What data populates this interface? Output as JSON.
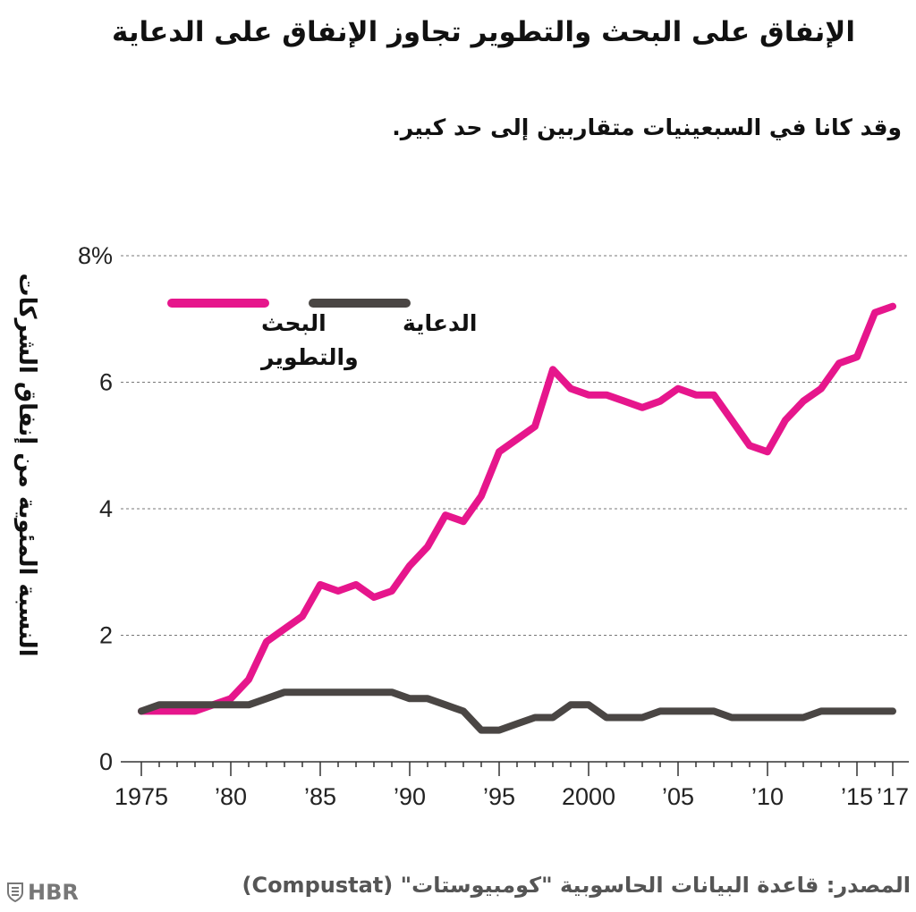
{
  "title": "الإنفاق على البحث والتطوير تجاوز الإنفاق على الدعاية",
  "subtitle": "وقد كانا في السبعينيات متقاربين إلى حد كبير.",
  "source": "المصدر: قاعدة البيانات الحاسوبية \"كومبيوستات\" (Compustat)",
  "logo": {
    "text": "HBR",
    "icon": "shield-icon"
  },
  "chart_data": {
    "type": "line",
    "title": "الإنفاق على البحث والتطوير تجاوز الإنفاق على الدعاية",
    "subtitle": "وقد كانا في السبعينيات متقاربين إلى حد كبير.",
    "ylabel": "النسبة المئوية من إنفاق الشركات",
    "xlabel": "",
    "ylim": [
      0,
      8
    ],
    "xlim": [
      1975,
      2017
    ],
    "grid": "horizontal-dashed",
    "legend_position": "top-left",
    "y_ticks": [
      {
        "value": 0,
        "label": "0"
      },
      {
        "value": 2,
        "label": "2"
      },
      {
        "value": 4,
        "label": "4"
      },
      {
        "value": 6,
        "label": "6"
      },
      {
        "value": 8,
        "label": "8%"
      }
    ],
    "x_ticks": [
      {
        "value": 1975,
        "label": "1975"
      },
      {
        "value": 1980,
        "label": "’80"
      },
      {
        "value": 1985,
        "label": "’85"
      },
      {
        "value": 1990,
        "label": "’90"
      },
      {
        "value": 1995,
        "label": "’95"
      },
      {
        "value": 2000,
        "label": "2000"
      },
      {
        "value": 2005,
        "label": "’05"
      },
      {
        "value": 2010,
        "label": "’10"
      },
      {
        "value": 2015,
        "label": "’15"
      },
      {
        "value": 2017,
        "label": "’17"
      }
    ],
    "x": [
      1975,
      1976,
      1977,
      1978,
      1979,
      1980,
      1981,
      1982,
      1983,
      1984,
      1985,
      1986,
      1987,
      1988,
      1989,
      1990,
      1991,
      1992,
      1993,
      1994,
      1995,
      1996,
      1997,
      1998,
      1999,
      2000,
      2001,
      2002,
      2003,
      2004,
      2005,
      2006,
      2007,
      2008,
      2009,
      2010,
      2011,
      2012,
      2013,
      2014,
      2015,
      2016,
      2017
    ],
    "series": [
      {
        "name": "البحث والتطوير",
        "label_lines": [
          "البحث",
          "والتطوير"
        ],
        "color": "#e6168c",
        "values": [
          0.8,
          0.8,
          0.8,
          0.8,
          0.9,
          1.0,
          1.3,
          1.9,
          2.1,
          2.3,
          2.8,
          2.7,
          2.8,
          2.6,
          2.7,
          3.1,
          3.4,
          3.9,
          3.8,
          4.2,
          4.9,
          5.1,
          5.3,
          6.2,
          5.9,
          5.8,
          5.8,
          5.7,
          5.6,
          5.7,
          5.9,
          5.8,
          5.8,
          5.4,
          5.0,
          4.9,
          5.4,
          5.7,
          5.9,
          6.3,
          6.4,
          7.1,
          7.2
        ]
      },
      {
        "name": "الدعاية",
        "label_lines": [
          "الدعاية"
        ],
        "color": "#4a4644",
        "values": [
          0.8,
          0.9,
          0.9,
          0.9,
          0.9,
          0.9,
          0.9,
          1.0,
          1.1,
          1.1,
          1.1,
          1.1,
          1.1,
          1.1,
          1.1,
          1.0,
          1.0,
          0.9,
          0.8,
          0.5,
          0.5,
          0.6,
          0.7,
          0.7,
          0.9,
          0.9,
          0.7,
          0.7,
          0.7,
          0.8,
          0.8,
          0.8,
          0.8,
          0.7,
          0.7,
          0.7,
          0.7,
          0.7,
          0.8,
          0.8,
          0.8,
          0.8,
          0.8
        ]
      }
    ]
  }
}
